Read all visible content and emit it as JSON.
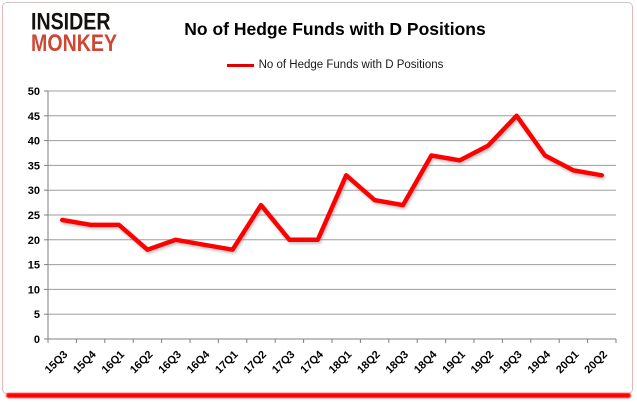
{
  "brand": {
    "line1": "INSIDER",
    "line2": "MONKEY"
  },
  "header": {
    "title": "No of Hedge Funds with D Positions"
  },
  "legend": {
    "label": "No of Hedge Funds with D Positions"
  },
  "colors": {
    "series_line": "#ff0000",
    "legend_swatch": "#e00000",
    "gridline": "#9d9d9d",
    "axis": "#7f7f7f",
    "brand_black": "#14110e",
    "brand_red": "#cf4633",
    "frame_bottom_glow": "#ff0000"
  },
  "chart_data": {
    "type": "line",
    "title": "No of Hedge Funds with D Positions",
    "categories": [
      "15Q3",
      "15Q4",
      "16Q1",
      "16Q2",
      "16Q3",
      "16Q4",
      "17Q1",
      "17Q2",
      "17Q3",
      "17Q4",
      "18Q1",
      "18Q2",
      "18Q3",
      "18Q4",
      "19Q1",
      "19Q2",
      "19Q3",
      "19Q4",
      "20Q1",
      "20Q2"
    ],
    "series": [
      {
        "name": "No of Hedge Funds with D Positions",
        "values": [
          24,
          23,
          23,
          18,
          20,
          19,
          18,
          27,
          20,
          20,
          33,
          28,
          27,
          37,
          36,
          39,
          45,
          37,
          34,
          33
        ]
      }
    ],
    "xlabel": "",
    "ylabel": "",
    "ylim": [
      0,
      50
    ],
    "yticks": [
      0,
      5,
      10,
      15,
      20,
      25,
      30,
      35,
      40,
      45,
      50
    ],
    "grid": "horizontal",
    "legend_position": "top"
  }
}
